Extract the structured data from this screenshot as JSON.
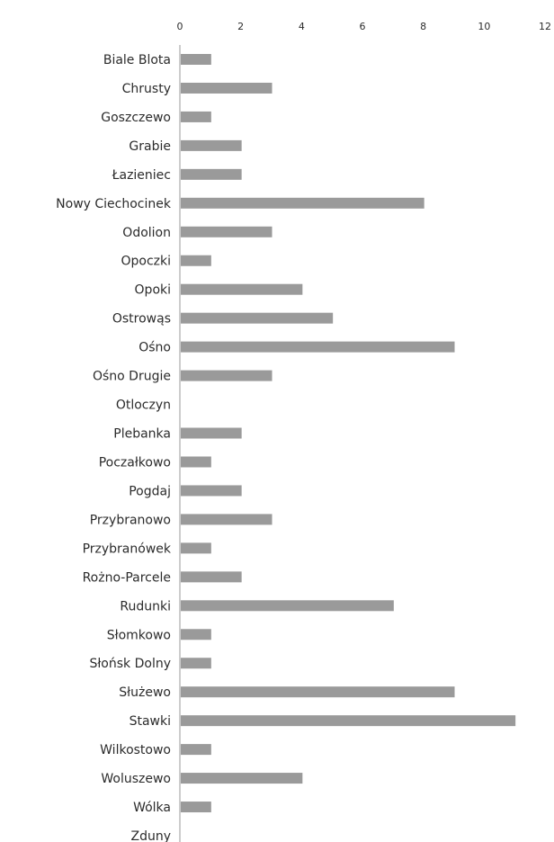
{
  "chart_data": {
    "type": "bar",
    "orientation": "horizontal",
    "title": "",
    "xlabel": "",
    "ylabel": "",
    "xlim": [
      0,
      12
    ],
    "x_ticks": [
      "0",
      "2",
      "4",
      "6",
      "8",
      "10",
      "12"
    ],
    "x_axis_position": "top",
    "grid": false,
    "legend": "none",
    "bar_color": "#9a9a9a",
    "axis_color": "#9a9a9a",
    "categories": [
      "Biale Blota",
      "Chrusty",
      "Goszczewo",
      "Grabie",
      "Łazieniec",
      "Nowy Ciechocinek",
      "Odolion",
      "Opoczki",
      "Opoki",
      "Ostrowąs",
      "Ośno",
      "Ośno Drugie",
      "Otloczyn",
      "Plebanka",
      "Poczałkowo",
      "Pogdaj",
      "Przybranowo",
      "Przybranówek",
      "Rożno-Parcele",
      "Rudunki",
      "Słomkowo",
      "Słońsk Dolny",
      "Służewo",
      "Stawki",
      "Wilkostowo",
      "Woluszewo",
      "Wólka",
      "Zduny"
    ],
    "values": [
      1,
      3,
      1,
      2,
      2,
      8,
      3,
      1,
      4,
      5,
      9,
      3,
      0,
      2,
      1,
      2,
      3,
      1,
      2,
      7,
      1,
      1,
      9,
      11,
      1,
      4,
      1,
      0
    ]
  }
}
